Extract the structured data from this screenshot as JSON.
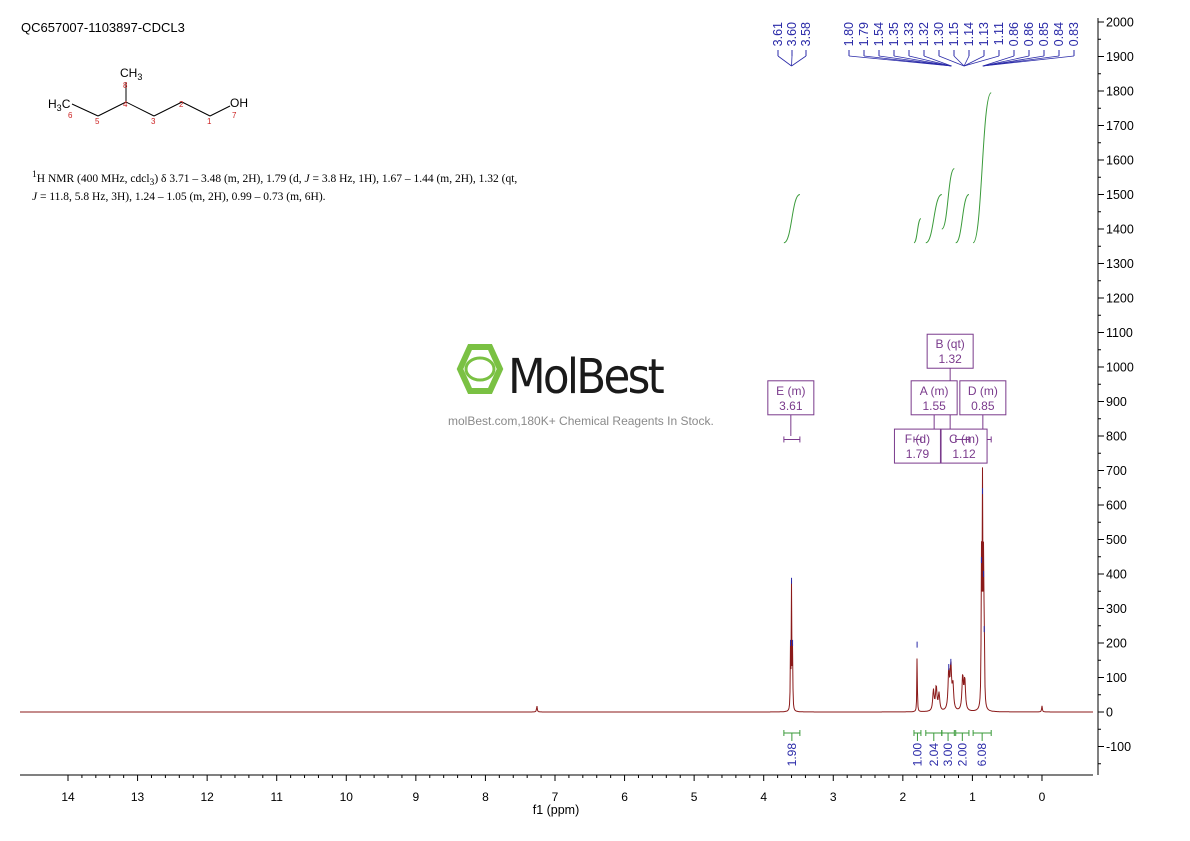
{
  "title": "QC657007-1103897-CDCL3",
  "description": {
    "line1_pre": "H NMR (400 MHz, cdcl",
    "sup1": "1",
    "sub3": "3",
    "line1_post": ") δ 3.71 – 3.48 (m, 2H), 1.79 (d, ",
    "j1": "J",
    "line1_tail": " = 3.8 Hz, 1H), 1.67 – 1.44 (m, 2H), 1.32 (qt,",
    "j2": "J",
    "line2": " = 11.8, 5.8 Hz, 3H), 1.24 – 1.05 (m, 2H), 0.99 – 0.73 (m, 6H)."
  },
  "structure": {
    "atoms": {
      "ch3_top": "CH3",
      "h3c": "H3C",
      "oh": "OH"
    },
    "numbers": [
      "8",
      "4",
      "2",
      "6",
      "5",
      "3",
      "1",
      "7"
    ]
  },
  "watermark": {
    "brand": "MolBest",
    "url": "molBest.com,180K+ Chemical Reagents In Stock."
  },
  "chart_data": {
    "type": "line",
    "xlabel": "f1 (ppm)",
    "xlim": [
      14.7,
      -0.7
    ],
    "ylim": [
      -190,
      2000
    ],
    "x_ticks": [
      14,
      13,
      12,
      11,
      10,
      9,
      8,
      7,
      6,
      5,
      4,
      3,
      2,
      1,
      0
    ],
    "y_ticks": [
      2000,
      1900,
      1800,
      1700,
      1600,
      1500,
      1400,
      1300,
      1200,
      1100,
      1000,
      900,
      800,
      700,
      600,
      500,
      400,
      300,
      200,
      100,
      0,
      -100
    ],
    "peaks": [
      {
        "ppm": 7.26,
        "height": 18,
        "width": 0.006
      },
      {
        "ppm": 3.615,
        "height": 180,
        "width": 0.004
      },
      {
        "ppm": 3.6,
        "height": 360,
        "width": 0.004
      },
      {
        "ppm": 3.585,
        "height": 180,
        "width": 0.004
      },
      {
        "ppm": 1.795,
        "height": 175,
        "width": 0.004
      },
      {
        "ppm": 1.56,
        "height": 60,
        "width": 0.012
      },
      {
        "ppm": 1.52,
        "height": 70,
        "width": 0.012
      },
      {
        "ppm": 1.48,
        "height": 50,
        "width": 0.012
      },
      {
        "ppm": 1.34,
        "height": 110,
        "width": 0.012
      },
      {
        "ppm": 1.31,
        "height": 125,
        "width": 0.012
      },
      {
        "ppm": 1.28,
        "height": 70,
        "width": 0.012
      },
      {
        "ppm": 1.14,
        "height": 100,
        "width": 0.012
      },
      {
        "ppm": 1.11,
        "height": 90,
        "width": 0.012
      },
      {
        "ppm": 0.87,
        "height": 420,
        "width": 0.005
      },
      {
        "ppm": 0.855,
        "height": 620,
        "width": 0.005
      },
      {
        "ppm": 0.84,
        "height": 380,
        "width": 0.005
      },
      {
        "ppm": 0.83,
        "height": 220,
        "width": 0.005
      },
      {
        "ppm": 0.0,
        "height": 18,
        "width": 0.006
      }
    ],
    "peak_labels_left": [
      "3.61",
      "3.60",
      "3.58"
    ],
    "peak_labels_left_target": 3.6,
    "peak_labels_right": [
      "1.80",
      "1.79",
      "1.54",
      "1.35",
      "1.33",
      "1.32",
      "1.30",
      "1.15",
      "1.14",
      "1.13",
      "1.11",
      "0.86",
      "0.86",
      "0.85",
      "0.84",
      "0.83"
    ],
    "peak_labels_right_targets": [
      1.3,
      1.12,
      0.85
    ],
    "integrals": [
      {
        "from": 3.71,
        "to": 3.48,
        "value": "1.98",
        "curve_bottom": 1360,
        "curve_top": 1500
      },
      {
        "from": 1.84,
        "to": 1.74,
        "value": "1.00",
        "curve_bottom": 1360,
        "curve_top": 1430
      },
      {
        "from": 1.67,
        "to": 1.44,
        "value": "2.04",
        "curve_bottom": 1360,
        "curve_top": 1500
      },
      {
        "from": 1.44,
        "to": 1.26,
        "value": "3.00",
        "curve_bottom": 1400,
        "curve_top": 1575
      },
      {
        "from": 1.24,
        "to": 1.05,
        "value": "2.00",
        "curve_bottom": 1360,
        "curve_top": 1500
      },
      {
        "from": 0.99,
        "to": 0.73,
        "value": "6.08",
        "curve_bottom": 1360,
        "curve_top": 1795
      }
    ],
    "multiplets": [
      {
        "label": "E (m)",
        "shift": "3.61",
        "box_ppm": 3.61,
        "y_top": 960,
        "range": [
          3.71,
          3.48
        ]
      },
      {
        "label": "B (qt)",
        "shift": "1.32",
        "box_ppm": 1.32,
        "y_top": 1095,
        "range": [
          1.44,
          1.26
        ]
      },
      {
        "label": "A (m)",
        "shift": "1.55",
        "box_ppm": 1.55,
        "y_top": 960,
        "range": [
          1.67,
          1.44
        ]
      },
      {
        "label": "D (m)",
        "shift": "0.85",
        "box_ppm": 0.85,
        "y_top": 960,
        "range": [
          0.99,
          0.73
        ]
      },
      {
        "label": "F (d)",
        "shift": "1.79",
        "box_ppm": 1.79,
        "y_top": 820,
        "range": [
          1.84,
          1.74
        ]
      },
      {
        "label": "C (m)",
        "shift": "1.12",
        "box_ppm": 1.12,
        "y_top": 820,
        "range": [
          1.24,
          1.05
        ]
      }
    ],
    "colors": {
      "spectrum": "#8b1a1a",
      "peak_marker": "#2a2aa8",
      "integral": "#3a9a3a",
      "multiplet": "#7a3a8c",
      "brand": "#7ac143",
      "axis": "#000000",
      "atom_number": "#cc2222"
    }
  }
}
